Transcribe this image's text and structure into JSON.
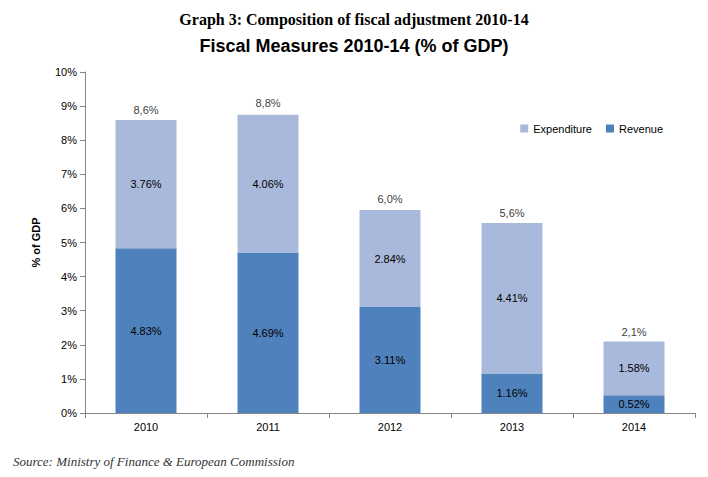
{
  "header": "Graph 3: Composition of fiscal adjustment 2010-14",
  "source": "Source: Ministry of Finance & European Commission",
  "chart_data": {
    "type": "bar",
    "title": "Fiscal Measures 2010-14 (% of GDP)",
    "y_label": "% of GDP",
    "categories": [
      "2010",
      "2011",
      "2012",
      "2013",
      "2014"
    ],
    "stacked": true,
    "data_labels": true,
    "grid": false,
    "legend": "top-right",
    "series": [
      {
        "name": "Revenue",
        "color": "#4f81bd",
        "values": [
          4.83,
          4.69,
          3.11,
          1.16,
          0.52
        ],
        "value_labels": [
          "4.83%",
          "4.69%",
          "3.11%",
          "1.16%",
          "0.52%"
        ]
      },
      {
        "name": "Expenditure",
        "color": "#a9b9db",
        "values": [
          3.76,
          4.06,
          2.84,
          4.41,
          1.58
        ],
        "value_labels": [
          "3.76%",
          "4.06%",
          "2.84%",
          "4.41%",
          "1.58%"
        ]
      }
    ],
    "annotations": [
      {
        "category": "2010",
        "value": 8.6,
        "label": "8,6%"
      },
      {
        "category": "2011",
        "value": 8.8,
        "label": "8,8%"
      },
      {
        "category": "2012",
        "value": 6.0,
        "label": "6,0%"
      },
      {
        "category": "2013",
        "value": 5.6,
        "label": "5,6%"
      },
      {
        "category": "2014",
        "value": 2.1,
        "label": "2,1%"
      }
    ],
    "ylim": [
      0,
      10
    ],
    "yticks": [
      {
        "value": 0,
        "label": "0%"
      },
      {
        "value": 1,
        "label": "1%"
      },
      {
        "value": 2,
        "label": "2%"
      },
      {
        "value": 3,
        "label": "3%"
      },
      {
        "value": 4,
        "label": "4%"
      },
      {
        "value": 5,
        "label": "5%"
      },
      {
        "value": 6,
        "label": "6%"
      },
      {
        "value": 7,
        "label": "7%"
      },
      {
        "value": 8,
        "label": "8%"
      },
      {
        "value": 9,
        "label": "9%"
      },
      {
        "value": 10,
        "label": "10%"
      }
    ]
  }
}
